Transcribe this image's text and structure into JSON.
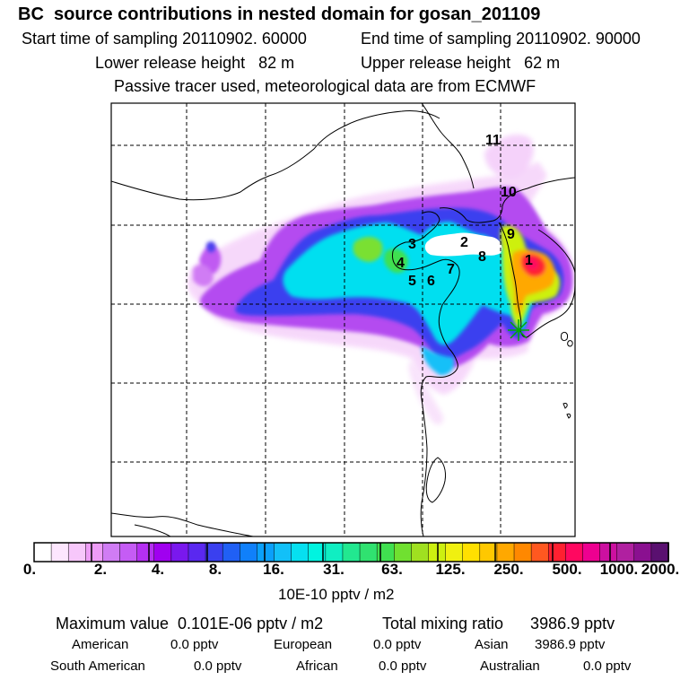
{
  "header": {
    "title": "BC  source contributions in nested domain for gosan_201109",
    "start_time": "Start time of sampling 20110902. 60000",
    "end_time": "End time of sampling 20110902. 90000",
    "lower_height": "Lower release height   82 m",
    "upper_height": "Upper release height   62 m",
    "tracer_note": "Passive tracer used, meteorological data are from ECMWF"
  },
  "map": {
    "site_labels": [
      "1",
      "2",
      "3",
      "4",
      "5",
      "6",
      "7",
      "8",
      "9",
      "10",
      "11"
    ],
    "receptor_marker": "asterisk-icon",
    "marker_color": "#00aa00"
  },
  "colorbar": {
    "tick_labels": [
      "0.",
      "2.",
      "4.",
      "8.",
      "16.",
      "31.",
      "63.",
      "125.",
      "250.",
      "500.",
      "1000.",
      "2000."
    ],
    "colors": [
      "#ffffff",
      "#fde6fe",
      "#f7c7fb",
      "#ee9cf7",
      "#d07cf4",
      "#c55cf5",
      "#b530f2",
      "#a000f0",
      "#7a18ee",
      "#5a28f0",
      "#3a40ef",
      "#2060f5",
      "#1080fa",
      "#0aa0fb",
      "#12c0f8",
      "#06e0f0",
      "#00f4e0",
      "#10eec2",
      "#22e890",
      "#30e270",
      "#40e050",
      "#70e030",
      "#a0e020",
      "#cdf010",
      "#f0f010",
      "#ffe000",
      "#ffc800",
      "#ffa800",
      "#ff8800",
      "#ff5820",
      "#ff2030",
      "#ff0860",
      "#ee0090",
      "#cc10a0",
      "#b020a0",
      "#8a1090",
      "#5a1070"
    ],
    "unit": "10E-10 pptv / m2"
  },
  "summary": {
    "maximum": "Maximum value  0.101E-06 pptv / m2",
    "total": "Total mixing ratio      3986.9 pptv",
    "american_label": "American",
    "american_value": "0.0 pptv",
    "european_label": "European",
    "european_value": "0.0 pptv",
    "asian_label": "Asian",
    "asian_value": "3986.9 pptv",
    "south_american_label": "South American",
    "south_american_value": "0.0 pptv",
    "african_label": "African",
    "african_value": "0.0 pptv",
    "australian_label": "Australian",
    "australian_value": "0.0 pptv"
  }
}
